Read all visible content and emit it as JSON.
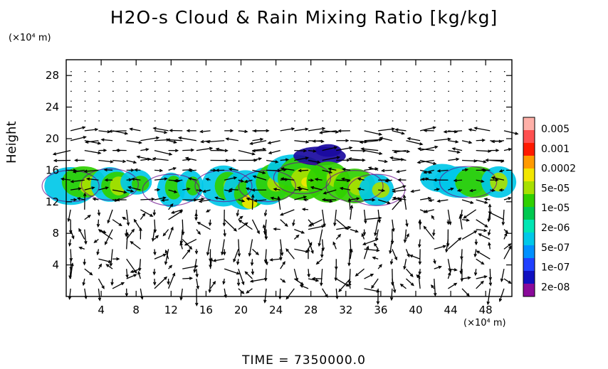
{
  "title": "H2O-s Cloud & Rain Mixing Ratio [kg/kg]",
  "footer": "TIME = 7350000.0",
  "chart_data": {
    "type": "heatmap",
    "title": "H2O-s Cloud & Rain Mixing Ratio [kg/kg]",
    "ylabel": "Height",
    "x_unit_label": "(×10⁴ m)",
    "y_unit_label": "(×10⁴ m)",
    "xlim": [
      0,
      51
    ],
    "ylim": [
      0,
      30
    ],
    "x_ticks": [
      4,
      8,
      12,
      16,
      20,
      24,
      28,
      32,
      36,
      40,
      44,
      48
    ],
    "y_ticks": [
      4,
      8,
      12,
      16,
      20,
      24,
      28
    ],
    "grid": false,
    "colorbar": {
      "labels": [
        "0.005",
        "0.001",
        "0.0002",
        "5e-05",
        "1e-05",
        "2e-06",
        "5e-07",
        "1e-07",
        "2e-08"
      ],
      "colors": [
        "#ffb0a8",
        "#ff5050",
        "#ff1a00",
        "#ff9a00",
        "#f2e600",
        "#a8e000",
        "#30d000",
        "#00c850",
        "#00e6b4",
        "#00c8e8",
        "#0090ff",
        "#2040ff",
        "#1010c0",
        "#8a0a9a"
      ]
    },
    "cloud_regions": [
      {
        "x": [
          0,
          10
        ],
        "y": [
          12.5,
          16.5
        ],
        "max_level": "5e-05"
      },
      {
        "x": [
          11,
          17
        ],
        "y": [
          11.5,
          16
        ],
        "max_level": "1e-05"
      },
      {
        "x": [
          17,
          23
        ],
        "y": [
          11,
          17.5
        ],
        "max_level": "0.0002"
      },
      {
        "x": [
          23,
          38
        ],
        "y": [
          11.5,
          19.5
        ],
        "max_level": "5e-05"
      },
      {
        "x": [
          41,
          51
        ],
        "y": [
          12.5,
          16.5
        ],
        "max_level": "5e-05"
      }
    ],
    "vectors": "wind field arrows across domain (not individually labeled)"
  }
}
